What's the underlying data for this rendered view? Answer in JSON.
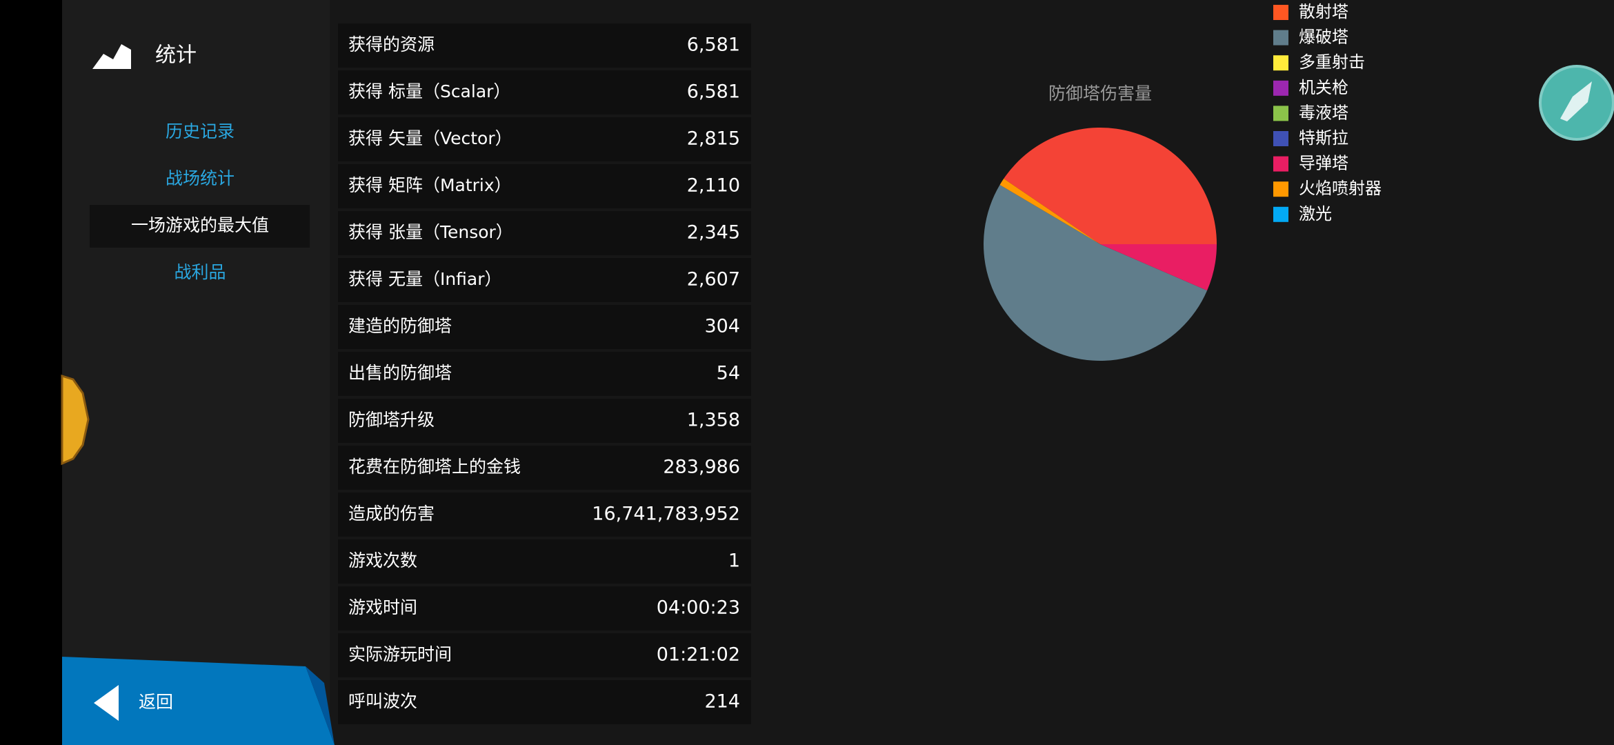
{
  "sidebar": {
    "title": "统计",
    "nav": [
      "历史记录",
      "战场统计",
      "一场游戏的最大值",
      "战利品"
    ],
    "active": 2,
    "back": "返回"
  },
  "table": {
    "rows": [
      [
        "获得的资源",
        "6,581"
      ],
      [
        "获得 标量（Scalar）",
        "6,581"
      ],
      [
        "获得 矢量（Vector）",
        "2,815"
      ],
      [
        "获得 矩阵（Matrix）",
        "2,110"
      ],
      [
        "获得 张量（Tensor）",
        "2,345"
      ],
      [
        "获得 无量（Infiar）",
        "2,607"
      ],
      [
        "建造的防御塔",
        "304"
      ],
      [
        "出售的防御塔",
        "54"
      ],
      [
        "防御塔升级",
        "1,358"
      ],
      [
        "花费在防御塔上的金钱",
        "283,986"
      ],
      [
        "造成的伤害",
        "16,741,783,952"
      ],
      [
        "游戏次数",
        "1"
      ],
      [
        "游戏时间",
        "04:00:23"
      ],
      [
        "实际游玩时间",
        "01:21:02"
      ],
      [
        "呼叫波次",
        "214"
      ]
    ]
  },
  "damage_chart": {
    "type": "pie",
    "title": "防御塔伤害量",
    "values": [
      40.5,
      1,
      52,
      6.5
    ],
    "colors": [
      "#f44336",
      "#ff9800",
      "#607d8b",
      "#e91e63"
    ]
  },
  "legend": [
    {
      "label": "散射塔",
      "color": "#ff5722"
    },
    {
      "label": "爆破塔",
      "color": "#607d8b"
    },
    {
      "label": "多重射击",
      "color": "#ffeb3b"
    },
    {
      "label": "机关枪",
      "color": "#9c27b0"
    },
    {
      "label": "毒液塔",
      "color": "#8bc34a"
    },
    {
      "label": "特斯拉",
      "color": "#3f51b5"
    },
    {
      "label": "导弹塔",
      "color": "#e91e63"
    },
    {
      "label": "火焰喷射器",
      "color": "#ff9800"
    },
    {
      "label": "激光",
      "color": "#03a9f4"
    }
  ]
}
